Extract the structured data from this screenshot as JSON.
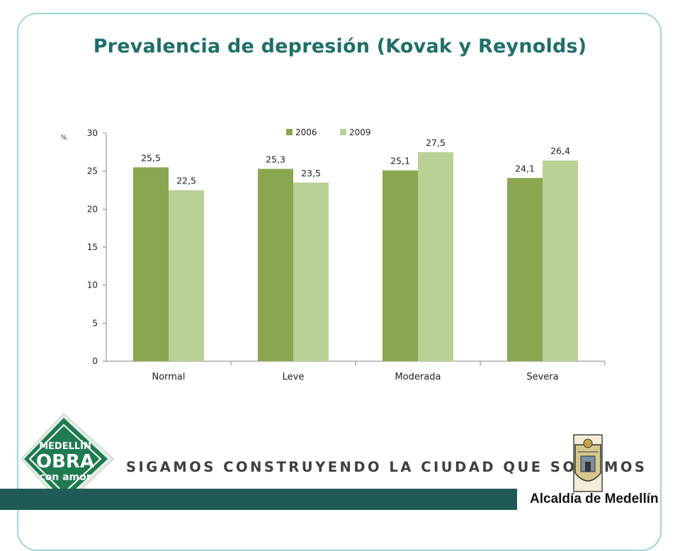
{
  "slide": {
    "title": "Prevalencia de depresión (Kovak y Reynolds)",
    "slogan": "SIGAMOS CONSTRUYENDO LA CIUDAD QUE SOÑAMOS",
    "left_logo": {
      "line1": "MEDELLÍN",
      "line2": "OBRA",
      "line3": "con amor"
    },
    "right_logo_caption": "Alcaldía de Medellín"
  },
  "chart_data": {
    "type": "bar",
    "title": "",
    "ylabel": "%",
    "xlabel": "",
    "categories": [
      "Normal",
      "Leve",
      "Moderada",
      "Severa"
    ],
    "series": [
      {
        "name": "2006",
        "values": [
          25.5,
          25.3,
          25.1,
          24.1
        ],
        "labels": [
          "25,5",
          "25,3",
          "25,1",
          "24,1"
        ],
        "color": "#8aa650"
      },
      {
        "name": "2009",
        "values": [
          22.5,
          23.5,
          27.5,
          26.4
        ],
        "labels": [
          "22,5",
          "23,5",
          "27,5",
          "26,4"
        ],
        "color": "#b9d194"
      }
    ],
    "ylim": [
      0,
      30
    ],
    "yticks": [
      0,
      5,
      10,
      15,
      20,
      25,
      30
    ],
    "grid": false,
    "legend_position": "top-center"
  },
  "colors": {
    "title": "#1f6f68",
    "frame": "#9fd6d2",
    "footer_band": "#1f5a57",
    "logo_green": "#1f7a4f"
  }
}
